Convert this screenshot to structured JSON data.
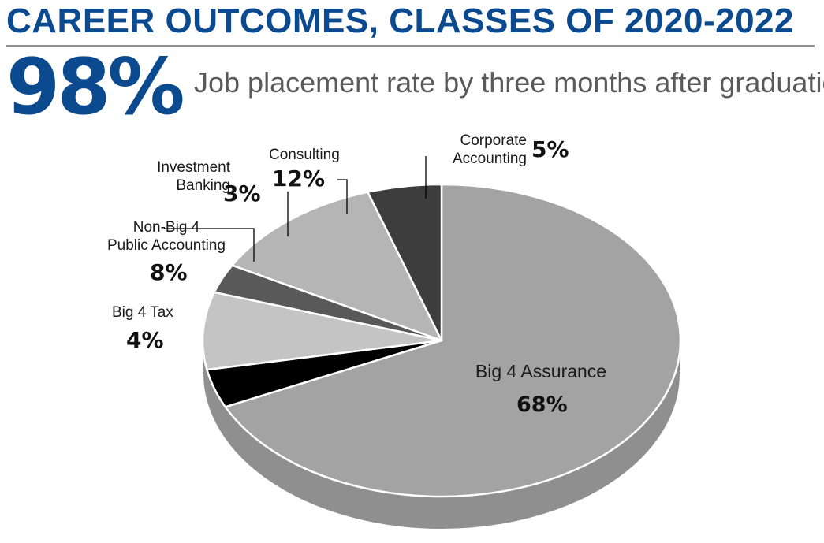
{
  "header": {
    "title": "CAREER OUTCOMES, CLASSES OF 2020-2022",
    "stat_value": "98%",
    "stat_caption": "Job placement rate by three months after graduation"
  },
  "chart_data": {
    "type": "pie",
    "title": "CAREER OUTCOMES, CLASSES OF 2020-2022",
    "slices": [
      {
        "label_lines": [
          "Big 4 Assurance"
        ],
        "value": 68,
        "pct_label": "68%",
        "color": "#a3a3a3"
      },
      {
        "label_lines": [
          "Big 4 Tax"
        ],
        "value": 4,
        "pct_label": "4%",
        "color": "#000000"
      },
      {
        "label_lines": [
          "Non-Big 4",
          "Public Accounting"
        ],
        "value": 8,
        "pct_label": "8%",
        "color": "#c4c4c4"
      },
      {
        "label_lines": [
          "Investment",
          "Banking"
        ],
        "value": 3,
        "pct_label": "3%",
        "color": "#595959"
      },
      {
        "label_lines": [
          "Consulting"
        ],
        "value": 12,
        "pct_label": "12%",
        "color": "#b5b5b5"
      },
      {
        "label_lines": [
          "Corporate",
          "Accounting"
        ],
        "value": 5,
        "pct_label": "5%",
        "color": "#3d3d3d"
      }
    ]
  }
}
